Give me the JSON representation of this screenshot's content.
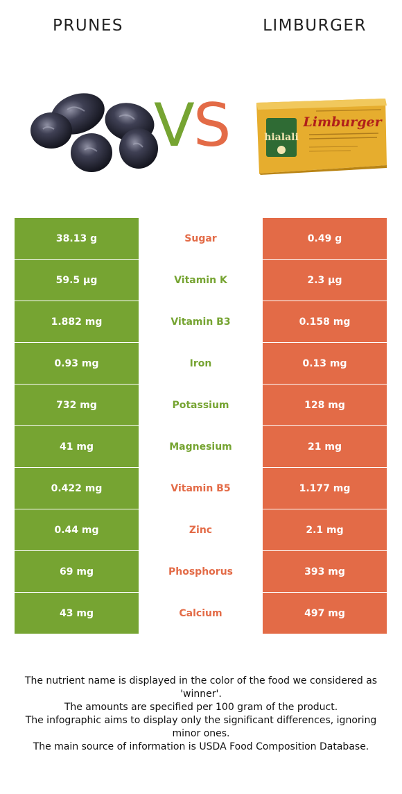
{
  "header": {
    "left_food": "PRUNES",
    "right_food": "LIMBURGER",
    "vs_v": "V",
    "vs_s": "S"
  },
  "colors": {
    "prunes": "#76a432",
    "limburger": "#e36b47"
  },
  "images": {
    "left": "prunes-image",
    "right": "limburger-cheese-package-image",
    "cheese_brand": "hialali",
    "cheese_name": "Limburger"
  },
  "rows": [
    {
      "left": "38.13 g",
      "nutrient": "Sugar",
      "right": "0.49 g",
      "winner": "limburger"
    },
    {
      "left": "59.5 µg",
      "nutrient": "Vitamin K",
      "right": "2.3 µg",
      "winner": "prunes"
    },
    {
      "left": "1.882 mg",
      "nutrient": "Vitamin B3",
      "right": "0.158 mg",
      "winner": "prunes"
    },
    {
      "left": "0.93 mg",
      "nutrient": "Iron",
      "right": "0.13 mg",
      "winner": "prunes"
    },
    {
      "left": "732 mg",
      "nutrient": "Potassium",
      "right": "128 mg",
      "winner": "prunes"
    },
    {
      "left": "41 mg",
      "nutrient": "Magnesium",
      "right": "21 mg",
      "winner": "prunes"
    },
    {
      "left": "0.422 mg",
      "nutrient": "Vitamin B5",
      "right": "1.177 mg",
      "winner": "limburger"
    },
    {
      "left": "0.44 mg",
      "nutrient": "Zinc",
      "right": "2.1 mg",
      "winner": "limburger"
    },
    {
      "left": "69 mg",
      "nutrient": "Phosphorus",
      "right": "393 mg",
      "winner": "limburger"
    },
    {
      "left": "43 mg",
      "nutrient": "Calcium",
      "right": "497 mg",
      "winner": "limburger"
    }
  ],
  "footer": {
    "line1": "The nutrient name is displayed in the color of the food we considered as 'winner'.",
    "line2": "The amounts are specified per 100 gram of the product.",
    "line3": "The infographic aims to display only the significant differences, ignoring minor ones.",
    "line4": "The main source of information is USDA Food Composition Database."
  }
}
